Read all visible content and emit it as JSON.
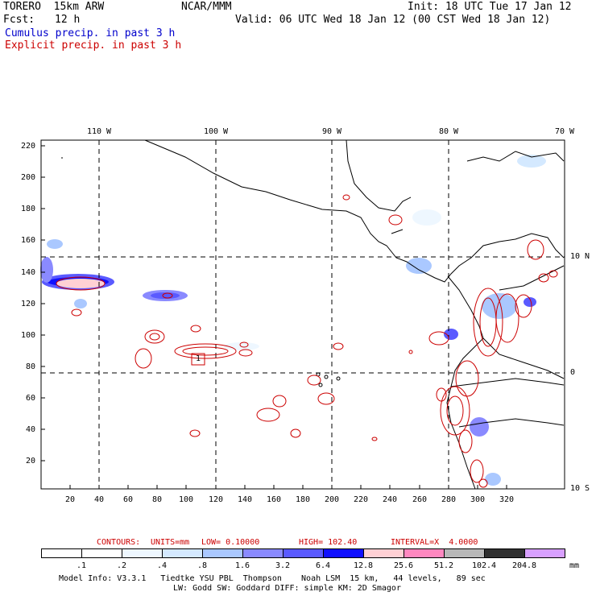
{
  "header": {
    "model": "TORERO  15km ARW",
    "org": "NCAR/MMM",
    "init": "Init: 18 UTC Tue 17 Jan 12",
    "fcst_label": "Fcst:",
    "fcst_value": "12 h",
    "valid": "Valid: 06 UTC Wed 18 Jan 12 (00 CST Wed 18 Jan 12)",
    "cumulus_label": "Cumulus precip. in past 3 h",
    "explicit_label": "Explicit precip. in past 3 h"
  },
  "colors": {
    "cumulus": "#0000cc",
    "explicit": "#cc0000",
    "coast": "#000000",
    "grid": "#000000"
  },
  "map": {
    "lon_labels": [
      "110 W",
      "100 W",
      "90 W",
      "80 W",
      "70 W"
    ],
    "lat_labels": [
      "10 N",
      "0",
      "10 S"
    ],
    "x_ticks": [
      "20",
      "40",
      "60",
      "80",
      "100",
      "120",
      "140",
      "160",
      "180",
      "200",
      "220",
      "240",
      "260",
      "280",
      "300",
      "320"
    ],
    "y_ticks": [
      "220",
      "200",
      "180",
      "160",
      "140",
      "120",
      "100",
      "80",
      "60",
      "40",
      "20"
    ],
    "contour_marker": "1"
  },
  "contours_line": {
    "prefix": "CONTOURS:",
    "units": "UNITS=mm",
    "low": "LOW= 0.10000",
    "high": "HIGH= 102.40",
    "interval": "INTERVAL=X  4.0000"
  },
  "colorbar": {
    "unit": "mm",
    "bins": [
      "#ffffff",
      "#ffffff",
      "#eef7ff",
      "#d4e9ff",
      "#aac8ff",
      "#8a8aff",
      "#5a5aff",
      "#1010ff",
      "#ffd0d4",
      "#ff88c0",
      "#b8b8b8",
      "#303030",
      "#d8a0ff"
    ],
    "labels": [
      ".1",
      ".2",
      ".4",
      ".8",
      "1.6",
      "3.2",
      "6.4",
      "12.8",
      "25.6",
      "51.2",
      "102.4",
      "204.8"
    ]
  },
  "footer": {
    "line1": "Model Info: V3.3.1   Tiedtke YSU PBL  Thompson    Noah LSM  15 km,   44 levels,   89 sec",
    "line2": "LW: Godd SW: Goddard DIFF: simple KM: 2D Smagor"
  }
}
